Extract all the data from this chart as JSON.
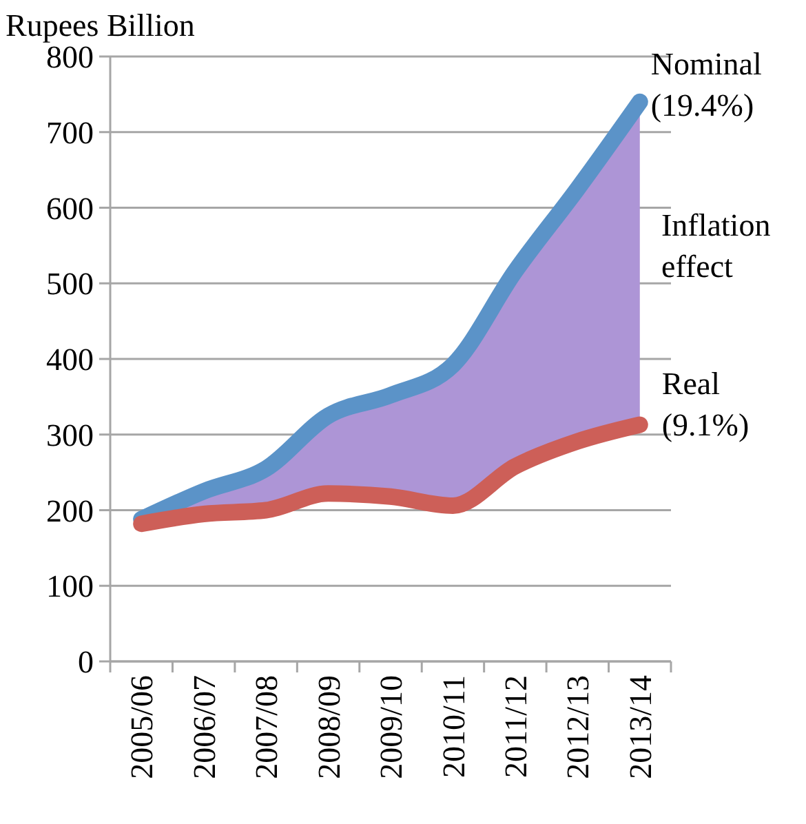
{
  "chart_data": {
    "type": "line",
    "ylabel": "Rupees Billion",
    "categories": [
      "2005/06",
      "2006/07",
      "2007/08",
      "2008/09",
      "2009/10",
      "2010/11",
      "2011/12",
      "2012/13",
      "2013/14"
    ],
    "series": [
      {
        "name": "Nominal (19.4%)",
        "color": "#5b93c8",
        "values": [
          188,
          225,
          255,
          325,
          352,
          392,
          516,
          625,
          740
        ],
        "lower": [
          182,
          195,
          200,
          222,
          218,
          206,
          258,
          291,
          313
        ],
        "upper": [
          188,
          225,
          255,
          325,
          352,
          392,
          516,
          625,
          740
        ]
      },
      {
        "name": "Real (9.1%)",
        "color": "#cd5f58",
        "values": [
          182,
          195,
          200,
          222,
          218,
          206,
          258,
          291,
          313
        ]
      }
    ],
    "ylim": [
      0,
      800
    ],
    "yticks": [
      0,
      100,
      200,
      300,
      400,
      500,
      600,
      700,
      800
    ],
    "grid": "y",
    "legend": false,
    "marker": "none",
    "line_style": "solid",
    "annotations": [
      "Inflation effect"
    ]
  }
}
